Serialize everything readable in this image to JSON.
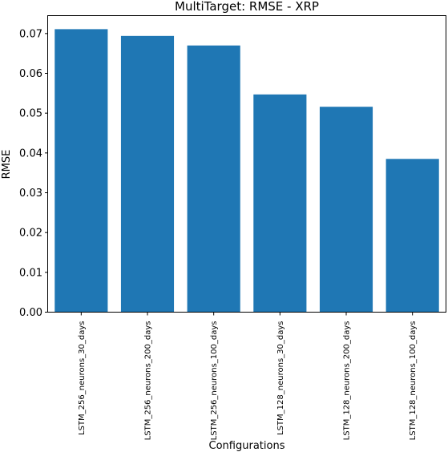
{
  "chart_data": {
    "type": "bar",
    "title": "MultiTarget: RMSE - XRP",
    "xlabel": "Configurations",
    "ylabel": "RMSE",
    "categories": [
      "LSTM_256_neurons_30_days",
      "LSTM_256_neurons_200_days",
      "LSTM_256_neurons_100_days",
      "LSTM_128_neurons_30_days",
      "LSTM_128_neurons_200_days",
      "LSTM_128_neurons_100_days"
    ],
    "values": [
      0.0711,
      0.0694,
      0.067,
      0.0547,
      0.0516,
      0.0385
    ],
    "ylim": [
      0,
      0.0745
    ],
    "yticks": [
      "0.00",
      "0.01",
      "0.02",
      "0.03",
      "0.04",
      "0.05",
      "0.06",
      "0.07"
    ],
    "grid": false,
    "bar_color": "#1f77b4"
  }
}
